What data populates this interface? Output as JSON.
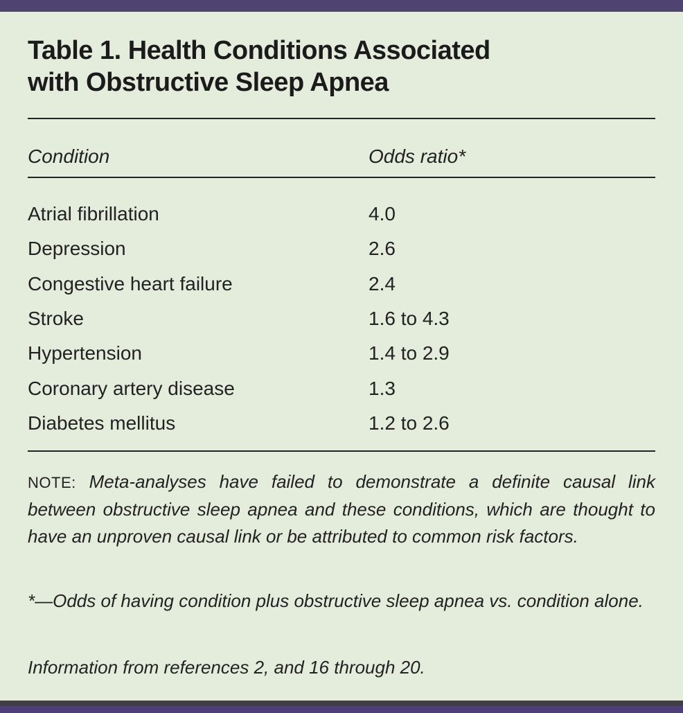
{
  "table": {
    "title_line1": "Table 1. Health Conditions Associated",
    "title_line2": "with Obstructive Sleep Apnea",
    "columns": [
      "Condition",
      "Odds ratio*"
    ],
    "rows": [
      {
        "condition": "Atrial fibrillation",
        "odds_ratio": "4.0"
      },
      {
        "condition": "Depression",
        "odds_ratio": "2.6"
      },
      {
        "condition": "Congestive heart failure",
        "odds_ratio": "2.4"
      },
      {
        "condition": "Stroke",
        "odds_ratio": "1.6 to 4.3"
      },
      {
        "condition": "Hypertension",
        "odds_ratio": "1.4 to 2.9"
      },
      {
        "condition": "Coronary artery disease",
        "odds_ratio": "1.3"
      },
      {
        "condition": "Diabetes mellitus",
        "odds_ratio": "1.2 to 2.6"
      }
    ]
  },
  "note": {
    "label": "NOTE:",
    "text": "Meta-analyses have failed to demonstrate a definite causal link between obstructive sleep apnea and these conditions, which are thought to have an unproven causal link or be attributed to common risk factors."
  },
  "footnote": "*—Odds of having condition plus obstructive sleep apnea vs. condition alone.",
  "source": "Information from references 2, and 16 through 20.",
  "colors": {
    "background": "#e4ecdc",
    "accent_bar": "#4f4372",
    "text": "#1e1e1e"
  }
}
